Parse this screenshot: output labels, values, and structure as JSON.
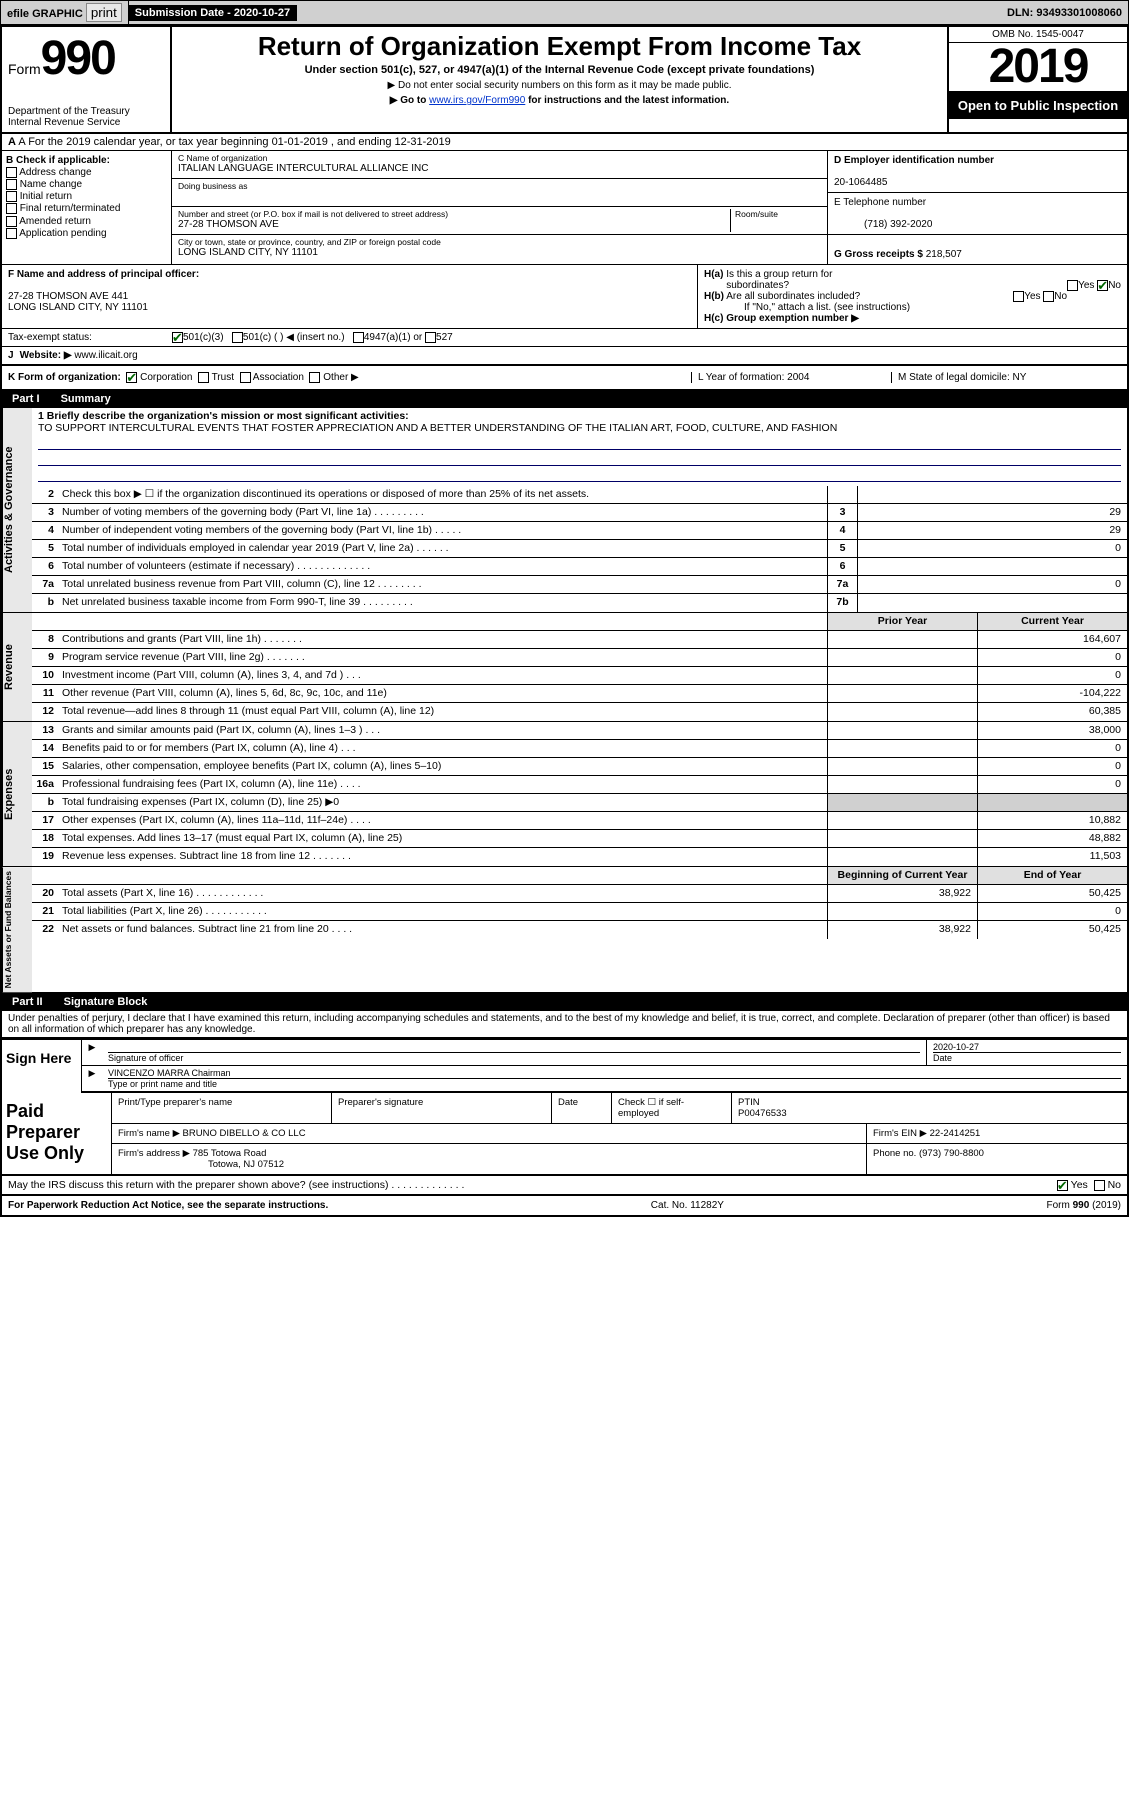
{
  "topbar": {
    "efile": "efile GRAPHIC",
    "print": "print",
    "sub_label": "Submission Date - 2020-10-27",
    "dln": "DLN: 93493301008060"
  },
  "header": {
    "form": "Form",
    "form_num": "990",
    "dept": "Department of the Treasury",
    "irs": "Internal Revenue Service",
    "title": "Return of Organization Exempt From Income Tax",
    "sub": "Under section 501(c), 527, or 4947(a)(1) of the Internal Revenue Code (except private foundations)",
    "note1": "▶ Do not enter social security numbers on this form as it may be made public.",
    "note2_pre": "▶ Go to ",
    "note2_link": "www.irs.gov/Form990",
    "note2_post": " for instructions and the latest information.",
    "omb": "OMB No. 1545-0047",
    "year": "2019",
    "inspect": "Open to Public Inspection"
  },
  "line_a": "A For the 2019 calendar year, or tax year beginning 01-01-2019   , and ending 12-31-2019",
  "col_b": {
    "hdr": "B Check if applicable:",
    "c1": "Address change",
    "c2": "Name change",
    "c3": "Initial return",
    "c4": "Final return/terminated",
    "c5": "Amended return",
    "c6": "Application pending"
  },
  "col_c": {
    "name_lbl": "C Name of organization",
    "name": "ITALIAN LANGUAGE INTERCULTURAL ALLIANCE INC",
    "dba_lbl": "Doing business as",
    "addr_lbl": "Number and street (or P.O. box if mail is not delivered to street address)",
    "room_lbl": "Room/suite",
    "addr": "27-28 THOMSON AVE",
    "city_lbl": "City or town, state or province, country, and ZIP or foreign postal code",
    "city": "LONG ISLAND CITY, NY  11101"
  },
  "col_d": {
    "ein_lbl": "D Employer identification number",
    "ein": "20-1064485",
    "tel_lbl": "E Telephone number",
    "tel": "(718) 392-2020",
    "gross_lbl": "G Gross receipts $",
    "gross": "218,507"
  },
  "row_f": {
    "lbl": "F Name and address of principal officer:",
    "addr1": "27-28 THOMSON AVE 441",
    "addr2": "LONG ISLAND CITY, NY  11101"
  },
  "row_h": {
    "a": "H(a)  Is this a group return for subordinates?",
    "b": "H(b)  Are all subordinates included?",
    "note": "If \"No,\" attach a list. (see instructions)",
    "c": "H(c)  Group exemption number ▶",
    "yes": "Yes",
    "no": "No"
  },
  "row_i": {
    "lbl": "Tax-exempt status:",
    "c1": "501(c)(3)",
    "c2": "501(c) (  ) ◀ (insert no.)",
    "c3": "4947(a)(1) or",
    "c4": "527"
  },
  "row_j": {
    "lbl": "J",
    "web_lbl": "Website: ▶",
    "web": "www.ilicait.org"
  },
  "row_k": {
    "lbl": "K Form of organization:",
    "corp": "Corporation",
    "trust": "Trust",
    "assoc": "Association",
    "other": "Other ▶",
    "l": "L Year of formation: 2004",
    "m": "M State of legal domicile: NY"
  },
  "part1": {
    "pt": "Part I",
    "title": "Summary"
  },
  "mission_lbl": "1  Briefly describe the organization's mission or most significant activities:",
  "mission": "TO SUPPORT INTERCULTURAL EVENTS THAT FOSTER APPRECIATION AND A BETTER UNDERSTANDING OF THE ITALIAN ART, FOOD, CULTURE, AND FASHION",
  "gov_rows": [
    {
      "n": "2",
      "d": "Check this box ▶ ☐ if the organization discontinued its operations or disposed of more than 25% of its net assets.",
      "bn": "",
      "bv": ""
    },
    {
      "n": "3",
      "d": "Number of voting members of the governing body (Part VI, line 1a) . . . . . . . . .",
      "bn": "3",
      "bv": "29"
    },
    {
      "n": "4",
      "d": "Number of independent voting members of the governing body (Part VI, line 1b) . . . . .",
      "bn": "4",
      "bv": "29"
    },
    {
      "n": "5",
      "d": "Total number of individuals employed in calendar year 2019 (Part V, line 2a) . . . . . .",
      "bn": "5",
      "bv": "0"
    },
    {
      "n": "6",
      "d": "Total number of volunteers (estimate if necessary)  . . . . . . . . . . . . .",
      "bn": "6",
      "bv": ""
    },
    {
      "n": "7a",
      "d": "Total unrelated business revenue from Part VIII, column (C), line 12 . . . . . . . .",
      "bn": "7a",
      "bv": "0"
    },
    {
      "n": "b",
      "d": "Net unrelated business taxable income from Form 990-T, line 39  . . . . . . . . .",
      "bn": "7b",
      "bv": ""
    }
  ],
  "rev_hdr": {
    "prior": "Prior Year",
    "curr": "Current Year"
  },
  "rev_rows": [
    {
      "n": "8",
      "d": "Contributions and grants (Part VIII, line 1h) . . . . . . .",
      "p": "",
      "c": "164,607"
    },
    {
      "n": "9",
      "d": "Program service revenue (Part VIII, line 2g) . . . . . . .",
      "p": "",
      "c": "0"
    },
    {
      "n": "10",
      "d": "Investment income (Part VIII, column (A), lines 3, 4, and 7d ) . . .",
      "p": "",
      "c": "0"
    },
    {
      "n": "11",
      "d": "Other revenue (Part VIII, column (A), lines 5, 6d, 8c, 9c, 10c, and 11e)",
      "p": "",
      "c": "-104,222"
    },
    {
      "n": "12",
      "d": "Total revenue—add lines 8 through 11 (must equal Part VIII, column (A), line 12)",
      "p": "",
      "c": "60,385"
    }
  ],
  "exp_rows": [
    {
      "n": "13",
      "d": "Grants and similar amounts paid (Part IX, column (A), lines 1–3 ) . . .",
      "p": "",
      "c": "38,000"
    },
    {
      "n": "14",
      "d": "Benefits paid to or for members (Part IX, column (A), line 4) . . .",
      "p": "",
      "c": "0"
    },
    {
      "n": "15",
      "d": "Salaries, other compensation, employee benefits (Part IX, column (A), lines 5–10)",
      "p": "",
      "c": "0"
    },
    {
      "n": "16a",
      "d": "Professional fundraising fees (Part IX, column (A), line 11e) . . . .",
      "p": "",
      "c": "0"
    },
    {
      "n": "b",
      "d": "Total fundraising expenses (Part IX, column (D), line 25) ▶0",
      "p": "shade",
      "c": "shade"
    },
    {
      "n": "17",
      "d": "Other expenses (Part IX, column (A), lines 11a–11d, 11f–24e) . . . .",
      "p": "",
      "c": "10,882"
    },
    {
      "n": "18",
      "d": "Total expenses. Add lines 13–17 (must equal Part IX, column (A), line 25)",
      "p": "",
      "c": "48,882"
    },
    {
      "n": "19",
      "d": "Revenue less expenses. Subtract line 18 from line 12 . . . . . . .",
      "p": "",
      "c": "11,503"
    }
  ],
  "net_hdr": {
    "beg": "Beginning of Current Year",
    "end": "End of Year"
  },
  "net_rows": [
    {
      "n": "20",
      "d": "Total assets (Part X, line 16) . . . . . . . . . . . .",
      "p": "38,922",
      "c": "50,425"
    },
    {
      "n": "21",
      "d": "Total liabilities (Part X, line 26) . . . . . . . . . . .",
      "p": "",
      "c": "0"
    },
    {
      "n": "22",
      "d": "Net assets or fund balances. Subtract line 21 from line 20 . . . .",
      "p": "38,922",
      "c": "50,425"
    }
  ],
  "vlabels": {
    "gov": "Activities & Governance",
    "rev": "Revenue",
    "exp": "Expenses",
    "net": "Net Assets or Fund Balances"
  },
  "part2": {
    "pt": "Part II",
    "title": "Signature Block"
  },
  "penalty": "Under penalties of perjury, I declare that I have examined this return, including accompanying schedules and statements, and to the best of my knowledge and belief, it is true, correct, and complete. Declaration of preparer (other than officer) is based on all information of which preparer has any knowledge.",
  "sign": {
    "here": "Sign Here",
    "sig_lbl": "Signature of officer",
    "date_lbl": "Date",
    "date": "2020-10-27",
    "name": "VINCENZO MARRA Chairman",
    "name_lbl": "Type or print name and title"
  },
  "prep": {
    "hdr": "Paid Preparer Use Only",
    "r1_1": "Print/Type preparer's name",
    "r1_2": "Preparer's signature",
    "r1_3": "Date",
    "r1_4": "Check ☐ if self-employed",
    "r1_5_lbl": "PTIN",
    "r1_5": "P00476533",
    "r2_1": "Firm's name    ▶",
    "r2_1v": "BRUNO DIBELLO & CO LLC",
    "r2_2": "Firm's EIN ▶",
    "r2_2v": "22-2414251",
    "r3_1": "Firm's address ▶",
    "r3_1v": "785 Totowa Road",
    "r3_1v2": "Totowa, NJ  07512",
    "r3_2": "Phone no.",
    "r3_2v": "(973) 790-8800",
    "discuss": "May the IRS discuss this return with the preparer shown above? (see instructions)  . . . . . . . . . . . . .",
    "yes": "Yes",
    "no": "No"
  },
  "footer": {
    "l": "For Paperwork Reduction Act Notice, see the separate instructions.",
    "m": "Cat. No. 11282Y",
    "r": "Form 990 (2019)"
  }
}
